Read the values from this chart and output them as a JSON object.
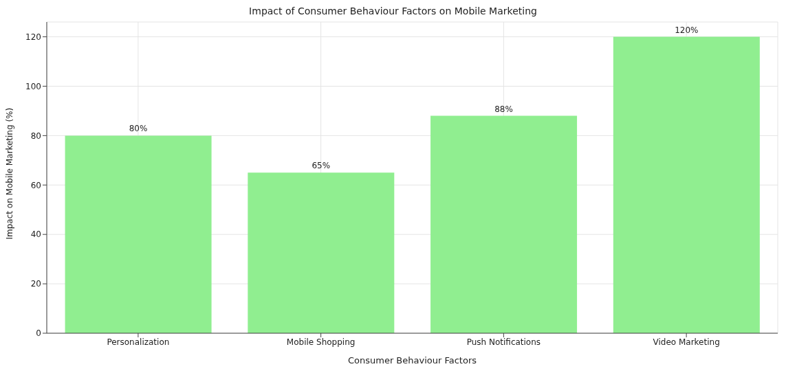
{
  "chart_data": {
    "type": "bar",
    "title": "Impact of Consumer Behaviour Factors on Mobile Marketing",
    "xlabel": "Consumer Behaviour Factors",
    "ylabel": "Impact on Mobile Marketing (%)",
    "categories": [
      "Personalization",
      "Mobile Shopping",
      "Push Notifications",
      "Video Marketing"
    ],
    "values": [
      80,
      65,
      88,
      120
    ],
    "color": "#90ee90",
    "value_labels": [
      "80%",
      "65%",
      "88%",
      "120%"
    ],
    "ylim": [
      0,
      126
    ],
    "yticks": [
      0,
      20,
      40,
      60,
      80,
      100,
      120
    ],
    "grid": true
  }
}
